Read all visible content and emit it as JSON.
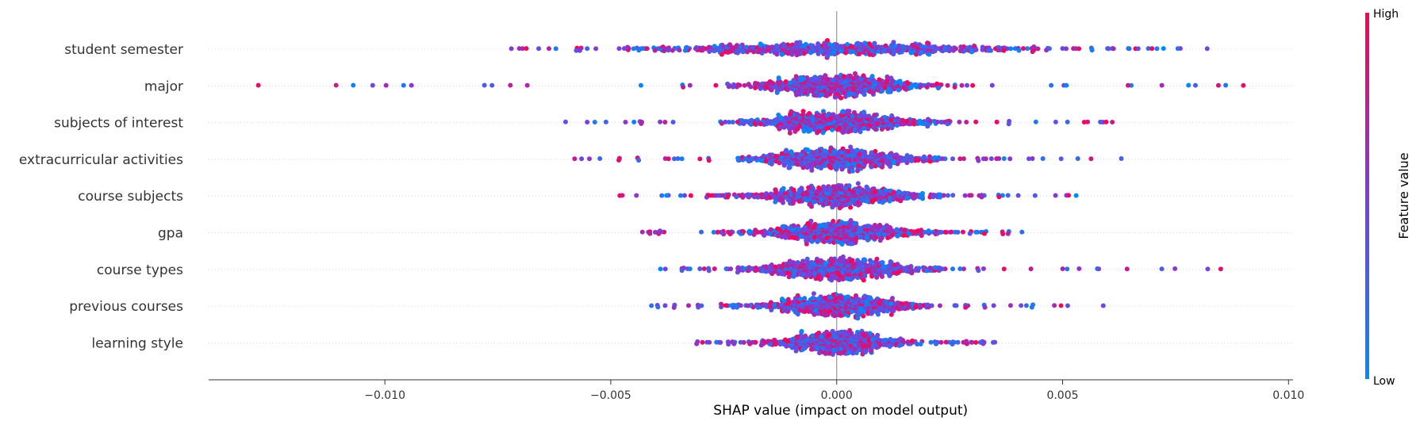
{
  "chart_data": {
    "type": "scatter",
    "subtype": "shap-beeswarm",
    "title": "",
    "xlabel": "SHAP value (impact on model output)",
    "ylabel": "",
    "xlim": [
      -0.0139,
      0.0101
    ],
    "xticks": [
      -0.01,
      -0.005,
      0.0,
      0.005,
      0.01
    ],
    "xtick_labels": [
      "−0.010",
      "−0.005",
      "0.000",
      "0.005",
      "0.010"
    ],
    "features": [
      {
        "name": "student semester",
        "spread": 0.0018,
        "min": -0.0072,
        "max": 0.0082
      },
      {
        "name": "major",
        "spread": 0.0009,
        "min": -0.0128,
        "max": 0.009
      },
      {
        "name": "subjects of interest",
        "spread": 0.0009,
        "min": -0.006,
        "max": 0.0061
      },
      {
        "name": "extracurricular activities",
        "spread": 0.0009,
        "min": -0.0058,
        "max": 0.0063
      },
      {
        "name": "course subjects",
        "spread": 0.0009,
        "min": -0.0048,
        "max": 0.0053
      },
      {
        "name": "gpa",
        "spread": 0.0009,
        "min": -0.0043,
        "max": 0.0041
      },
      {
        "name": "course types",
        "spread": 0.0009,
        "min": -0.0039,
        "max": 0.0085
      },
      {
        "name": "previous courses",
        "spread": 0.0008,
        "min": -0.0041,
        "max": 0.0059
      },
      {
        "name": "learning style",
        "spread": 0.0007,
        "min": -0.0031,
        "max": 0.0035
      }
    ],
    "colorbar": {
      "title": "Feature value",
      "high_label": "High",
      "low_label": "Low",
      "high_color": "#ff0052",
      "low_color": "#008bfb"
    },
    "zero_line": 0,
    "grid": false
  }
}
